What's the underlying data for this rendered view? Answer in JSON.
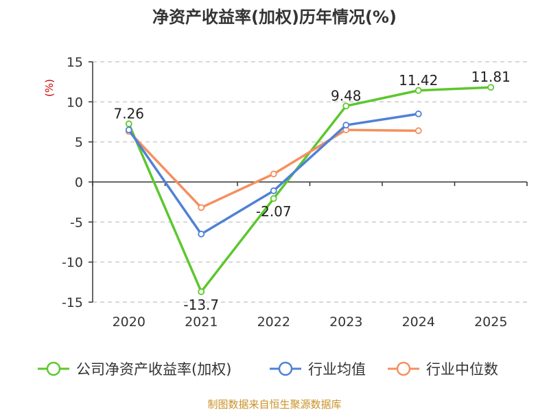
{
  "chart_data": {
    "type": "line",
    "title": "净资产收益率(加权)历年情况(%)",
    "ylabel": "(%)",
    "xlabel": "",
    "categories": [
      "2020",
      "2021",
      "2022",
      "2023",
      "2024",
      "2025"
    ],
    "ylim": [
      -15,
      15
    ],
    "yticks": [
      15,
      10,
      5,
      0,
      -5,
      -10,
      -15
    ],
    "grid": true,
    "legend_position": "bottom",
    "series": [
      {
        "name": "公司净资产收益率(加权)",
        "color": "#5cc72d",
        "values": [
          7.26,
          -13.7,
          -2.07,
          9.48,
          11.42,
          11.81
        ],
        "labels": [
          "7.26",
          "-13.7",
          "-2.07",
          "9.48",
          "11.42",
          "11.81"
        ]
      },
      {
        "name": "行业均值",
        "color": "#4f81d6",
        "values": [
          6.5,
          -6.5,
          -1.1,
          7.1,
          8.5,
          null
        ]
      },
      {
        "name": "行业中位数",
        "color": "#f58f5e",
        "values": [
          6.3,
          -3.2,
          1.0,
          6.5,
          6.4,
          null
        ]
      }
    ],
    "source": "制图数据来自恒生聚源数据库"
  }
}
